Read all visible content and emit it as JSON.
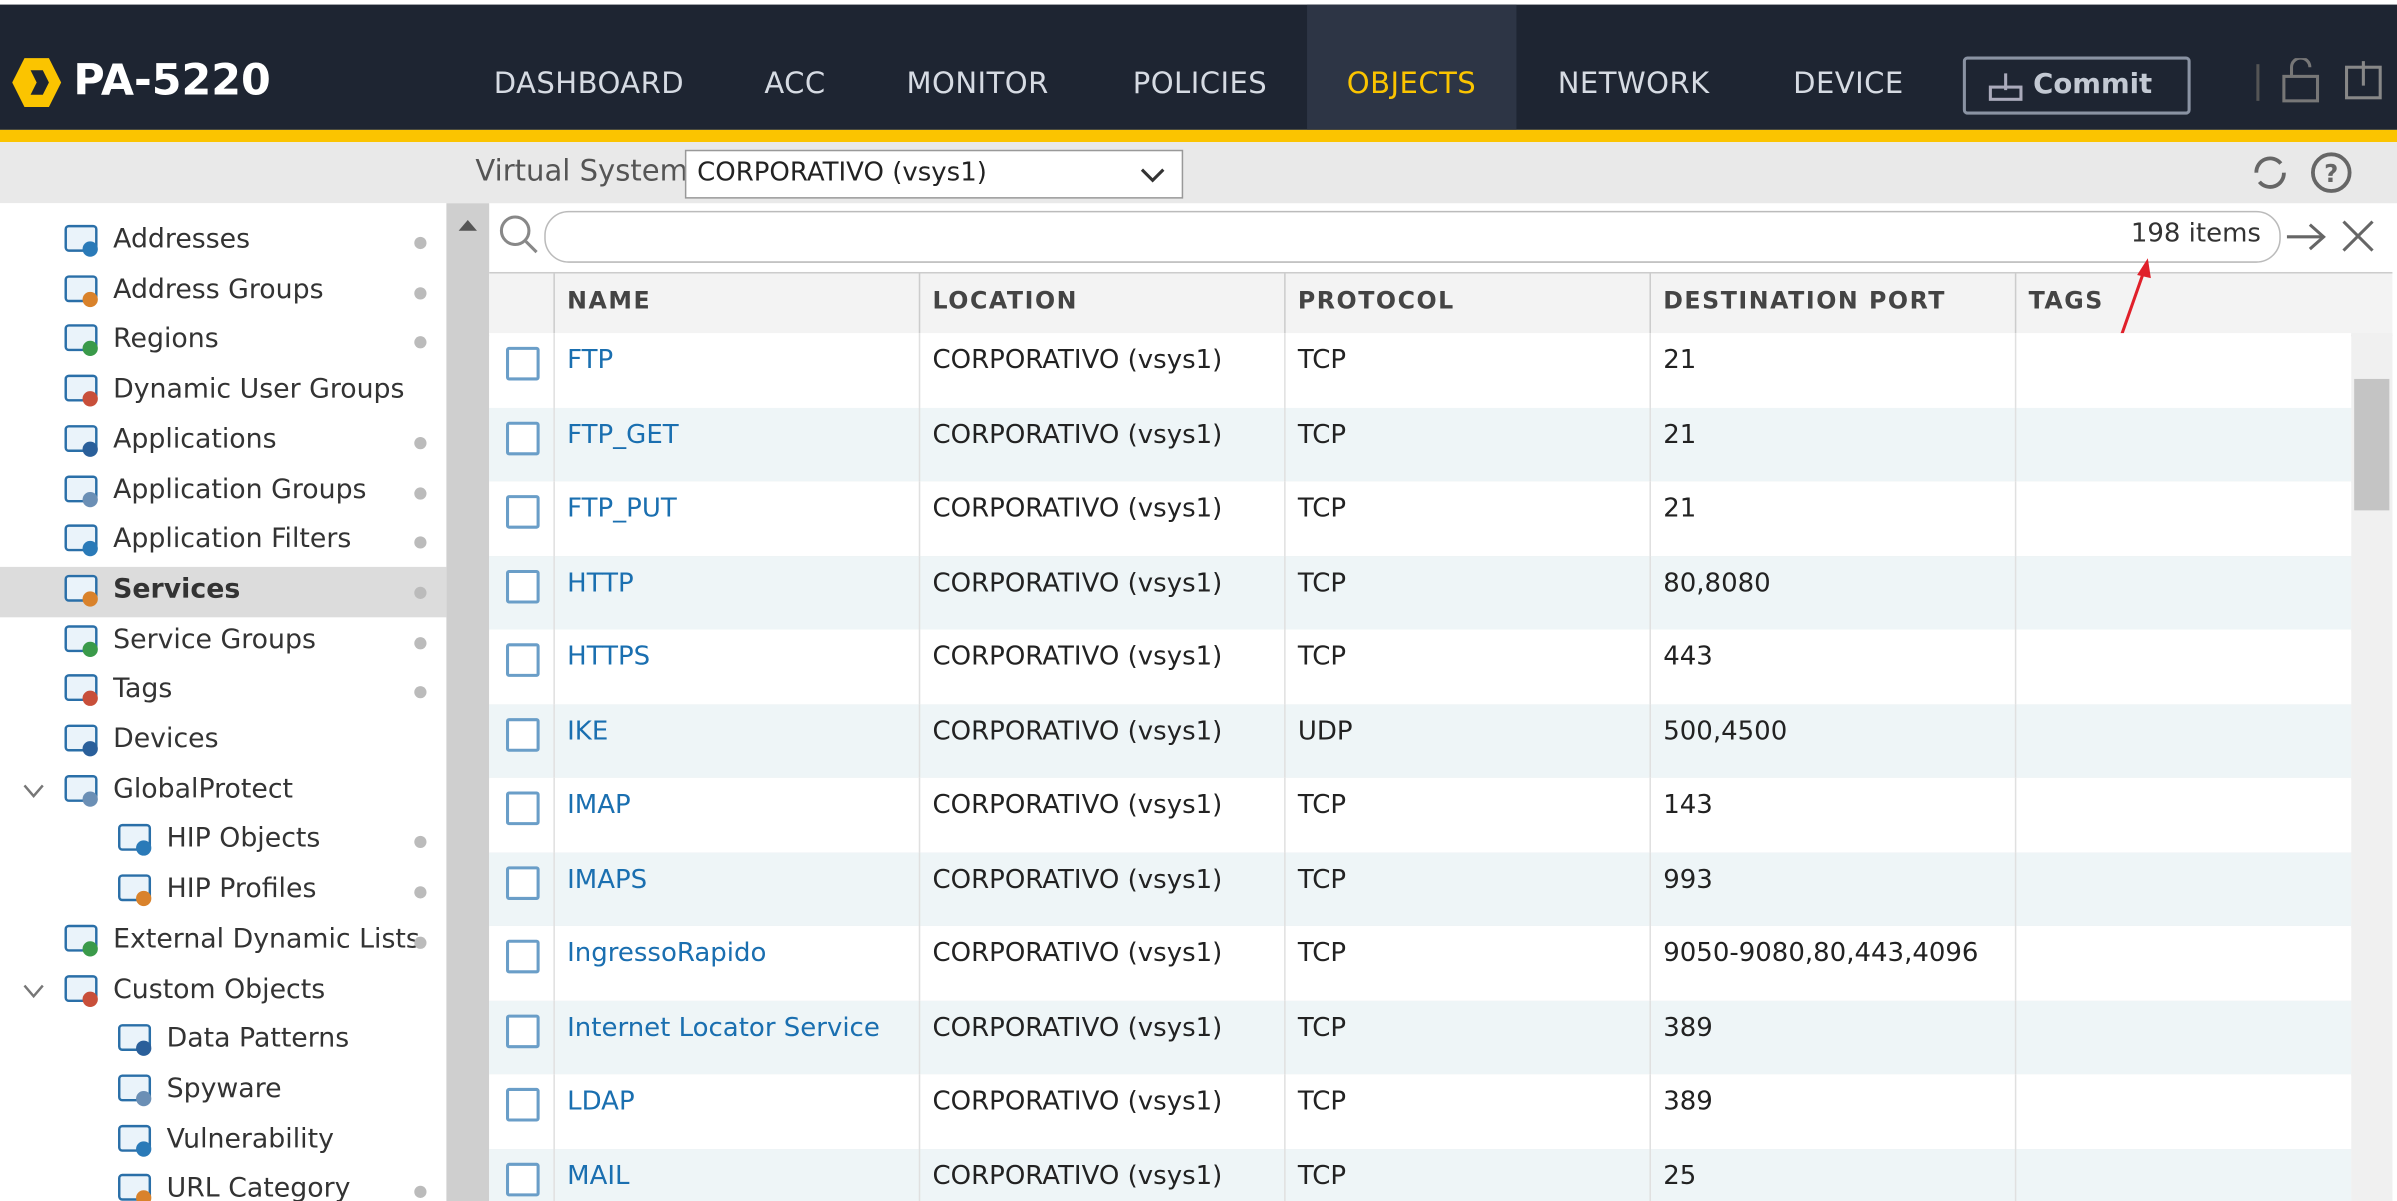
{
  "header": {
    "product": "PA-5220",
    "tabs": [
      "DASHBOARD",
      "ACC",
      "MONITOR",
      "POLICIES",
      "OBJECTS",
      "NETWORK",
      "DEVICE"
    ],
    "active_tab": 4,
    "commit": "Commit"
  },
  "toolbar": {
    "label": "Virtual System",
    "value": "CORPORATIVO (vsys1)"
  },
  "sidebar": {
    "items": [
      {
        "label": "Addresses",
        "dot": true
      },
      {
        "label": "Address Groups",
        "dot": true
      },
      {
        "label": "Regions",
        "dot": true
      },
      {
        "label": "Dynamic User Groups",
        "dot": false
      },
      {
        "label": "Applications",
        "dot": true
      },
      {
        "label": "Application Groups",
        "dot": true
      },
      {
        "label": "Application Filters",
        "dot": true
      },
      {
        "label": "Services",
        "dot": true,
        "selected": true
      },
      {
        "label": "Service Groups",
        "dot": true
      },
      {
        "label": "Tags",
        "dot": true
      },
      {
        "label": "Devices",
        "dot": false
      },
      {
        "label": "GlobalProtect",
        "dot": false,
        "children": [
          {
            "label": "HIP Objects",
            "dot": true
          },
          {
            "label": "HIP Profiles",
            "dot": true
          }
        ]
      },
      {
        "label": "External Dynamic Lists",
        "dot": true
      },
      {
        "label": "Custom Objects",
        "dot": false,
        "children": [
          {
            "label": "Data Patterns",
            "dot": false
          },
          {
            "label": "Spyware",
            "dot": false
          },
          {
            "label": "Vulnerability",
            "dot": false
          },
          {
            "label": "URL Category",
            "dot": true
          }
        ]
      }
    ]
  },
  "search": {
    "count": "198 items"
  },
  "table": {
    "columns": [
      "NAME",
      "LOCATION",
      "PROTOCOL",
      "DESTINATION PORT",
      "TAGS"
    ],
    "rows": [
      [
        "FTP",
        "CORPORATIVO (vsys1)",
        "TCP",
        "21"
      ],
      [
        "FTP_GET",
        "CORPORATIVO (vsys1)",
        "TCP",
        "21"
      ],
      [
        "FTP_PUT",
        "CORPORATIVO (vsys1)",
        "TCP",
        "21"
      ],
      [
        "HTTP",
        "CORPORATIVO (vsys1)",
        "TCP",
        "80,8080"
      ],
      [
        "HTTPS",
        "CORPORATIVO (vsys1)",
        "TCP",
        "443"
      ],
      [
        "IKE",
        "CORPORATIVO (vsys1)",
        "UDP",
        "500,4500"
      ],
      [
        "IMAP",
        "CORPORATIVO (vsys1)",
        "TCP",
        "143"
      ],
      [
        "IMAPS",
        "CORPORATIVO (vsys1)",
        "TCP",
        "993"
      ],
      [
        "IngressoRapido",
        "CORPORATIVO (vsys1)",
        "TCP",
        "9050-9080,80,443,4096"
      ],
      [
        "Internet Locator Service",
        "CORPORATIVO (vsys1)",
        "TCP",
        "389"
      ],
      [
        "LDAP",
        "CORPORATIVO (vsys1)",
        "TCP",
        "389"
      ],
      [
        "MAIL",
        "CORPORATIVO (vsys1)",
        "TCP",
        "25"
      ]
    ]
  }
}
